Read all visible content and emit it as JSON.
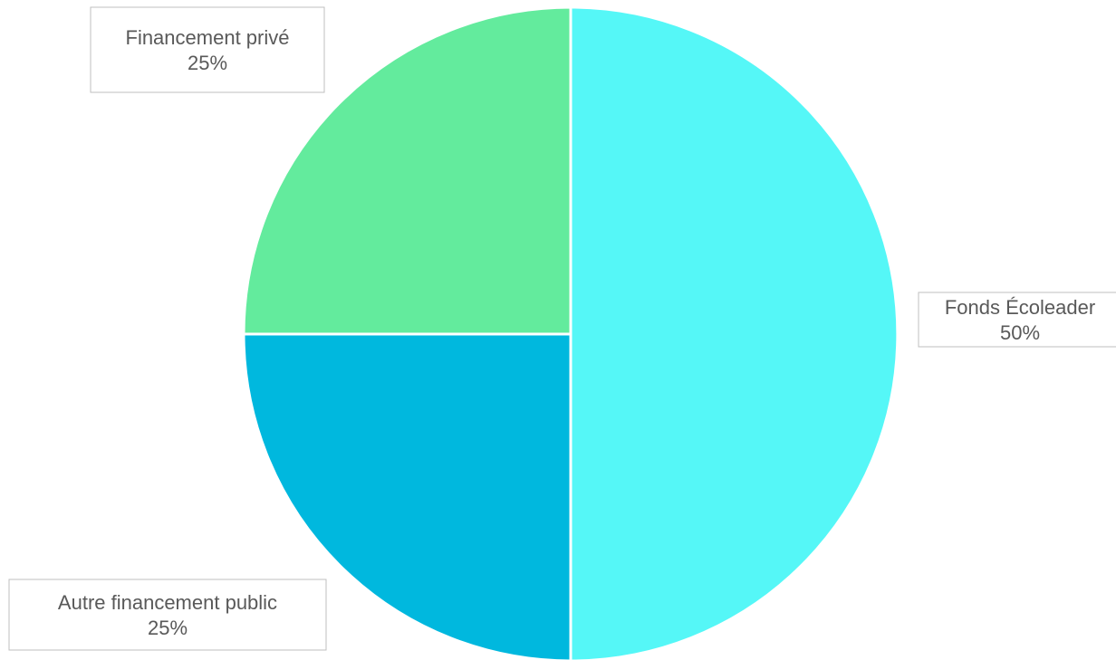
{
  "chart_data": {
    "type": "pie",
    "title": "",
    "slices": [
      {
        "label": "Fonds Écoleader",
        "value": 50,
        "value_label": "50%",
        "color": "#55F7F7"
      },
      {
        "label": "Autre financement public",
        "value": 25,
        "value_label": "25%",
        "color": "#00B8DE"
      },
      {
        "label": "Financement privé",
        "value": 25,
        "value_label": "25%",
        "color": "#63EB9D"
      }
    ],
    "start_angle": "12 o'clock",
    "direction": "clockwise",
    "legend": "none",
    "data_labels": "outside, boxed"
  }
}
